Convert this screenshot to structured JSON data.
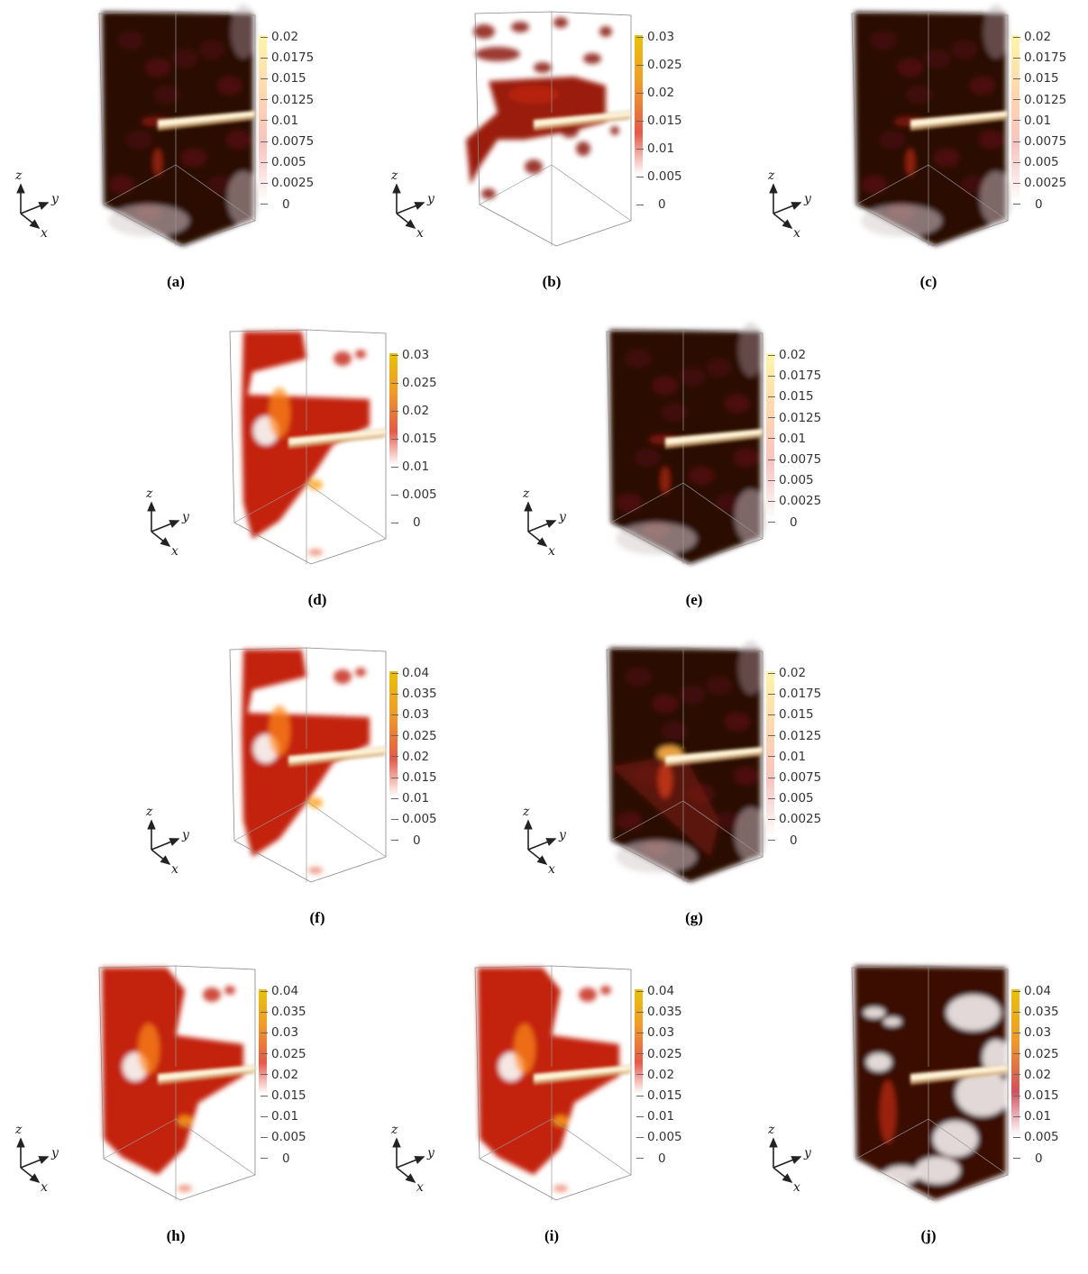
{
  "panels": [
    {
      "id": "a",
      "caption": "(a)",
      "style": "dark",
      "ticks": [
        "0.02",
        "0.0175",
        "0.015",
        "0.0125",
        "0.01",
        "0.0075",
        "0.005",
        "0.0025",
        "0"
      ],
      "cmap": "pink-yellow",
      "tickcount_gradient": 8
    },
    {
      "id": "b",
      "caption": "(b)",
      "style": "sparse",
      "ticks": [
        "0.03",
        "0.025",
        "0.02",
        "0.015",
        "0.01",
        "0.005",
        "0"
      ],
      "cmap": "red-yellow",
      "tickcount_gradient": 5
    },
    {
      "id": "c",
      "caption": "(c)",
      "style": "dark",
      "ticks": [
        "0.02",
        "0.0175",
        "0.015",
        "0.0125",
        "0.01",
        "0.0075",
        "0.005",
        "0.0025",
        "0"
      ],
      "cmap": "pink-yellow",
      "tickcount_gradient": 8
    },
    {
      "id": "d",
      "caption": "(d)",
      "style": "red",
      "ticks": [
        "0.03",
        "0.025",
        "0.02",
        "0.015",
        "0.01",
        "0.005",
        "0"
      ],
      "cmap": "red-yellow",
      "tickcount_gradient": 4
    },
    {
      "id": "e",
      "caption": "(e)",
      "style": "dark",
      "ticks": [
        "0.02",
        "0.0175",
        "0.015",
        "0.0125",
        "0.01",
        "0.0075",
        "0.005",
        "0.0025",
        "0"
      ],
      "cmap": "pink-yellow",
      "tickcount_gradient": 8
    },
    {
      "id": "f",
      "caption": "(f)",
      "style": "red",
      "ticks": [
        "0.04",
        "0.035",
        "0.03",
        "0.025",
        "0.02",
        "0.015",
        "0.01",
        "0.005",
        "0"
      ],
      "cmap": "red-yellow",
      "tickcount_gradient": 6
    },
    {
      "id": "g",
      "caption": "(g)",
      "style": "darkbright",
      "ticks": [
        "0.02",
        "0.0175",
        "0.015",
        "0.0125",
        "0.01",
        "0.0075",
        "0.005",
        "0.0025",
        "0"
      ],
      "cmap": "pink-yellow",
      "tickcount_gradient": 8
    },
    {
      "id": "h",
      "caption": "(h)",
      "style": "redfull",
      "ticks": [
        "0.04",
        "0.035",
        "0.03",
        "0.025",
        "0.02",
        "0.015",
        "0.01",
        "0.005",
        "0"
      ],
      "cmap": "red-yellow",
      "tickcount_gradient": 5
    },
    {
      "id": "i",
      "caption": "(i)",
      "style": "redfull",
      "ticks": [
        "0.04",
        "0.035",
        "0.03",
        "0.025",
        "0.02",
        "0.015",
        "0.01",
        "0.005",
        "0"
      ],
      "cmap": "red-yellow",
      "tickcount_gradient": 5
    },
    {
      "id": "j",
      "caption": "(j)",
      "style": "darkwhite",
      "ticks": [
        "0.04",
        "0.035",
        "0.03",
        "0.025",
        "0.02",
        "0.015",
        "0.01",
        "0.005",
        "0"
      ],
      "cmap": "dark-yellow",
      "tickcount_gradient": 7
    }
  ],
  "axis_labels": {
    "z": "z",
    "y": "y",
    "x": "x"
  },
  "colors": {
    "dark_volume": "#2a0605",
    "red_volume": "#c8240f",
    "highlight": "#ffd24a"
  }
}
